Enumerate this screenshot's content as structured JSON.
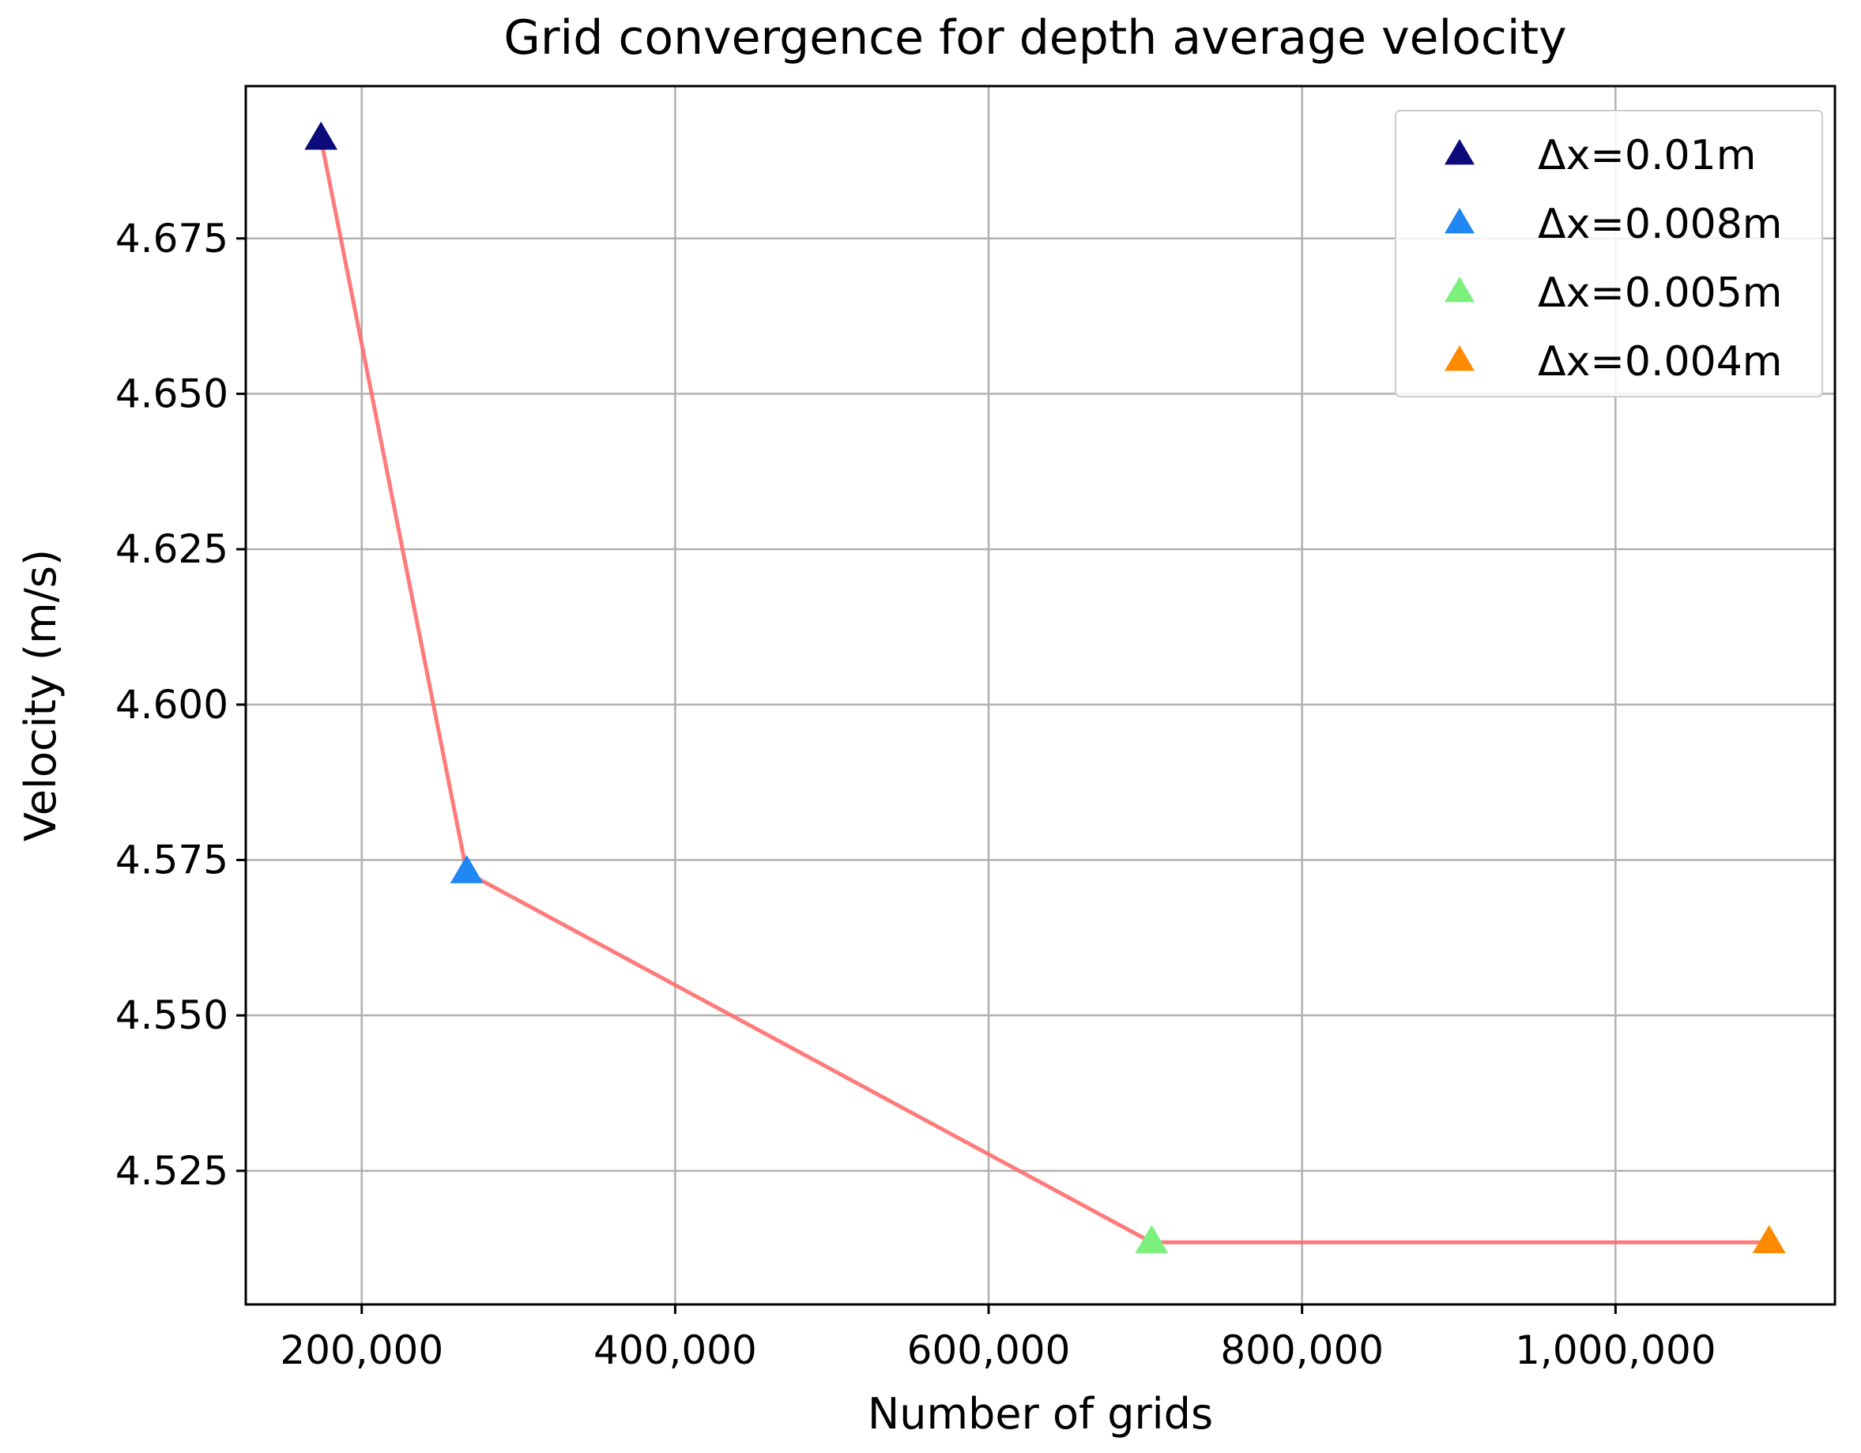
{
  "chart_data": {
    "type": "line",
    "title": "Grid convergence for depth average velocity",
    "xlabel": "Number of grids",
    "ylabel": "Velocity (m/s)",
    "xlim": [
      126000,
      1140000
    ],
    "ylim": [
      4.5035,
      4.6995
    ],
    "grid": true,
    "xticks": [
      200000,
      400000,
      600000,
      800000,
      1000000
    ],
    "xtick_labels": [
      "200,000",
      "400,000",
      "600,000",
      "800,000",
      "1,000,000"
    ],
    "yticks": [
      4.525,
      4.55,
      4.575,
      4.6,
      4.625,
      4.65,
      4.675
    ],
    "ytick_labels": [
      "4.525",
      "4.550",
      "4.575",
      "4.600",
      "4.625",
      "4.650",
      "4.675"
    ],
    "line_color": "#ff6b6b",
    "legend_position": "top-right",
    "series": [
      {
        "name": "Δx=0.01m",
        "x": 174000,
        "y": 4.691,
        "color": "#0b0b7a",
        "marker": "triangle"
      },
      {
        "name": "Δx=0.008m",
        "x": 267000,
        "y": 4.573,
        "color": "#1f86f2",
        "marker": "triangle"
      },
      {
        "name": "Δx=0.005m",
        "x": 704000,
        "y": 4.5135,
        "color": "#7cf07c",
        "marker": "triangle"
      },
      {
        "name": "Δx=0.004m",
        "x": 1098000,
        "y": 4.5135,
        "color": "#ff8a00",
        "marker": "triangle"
      }
    ]
  }
}
